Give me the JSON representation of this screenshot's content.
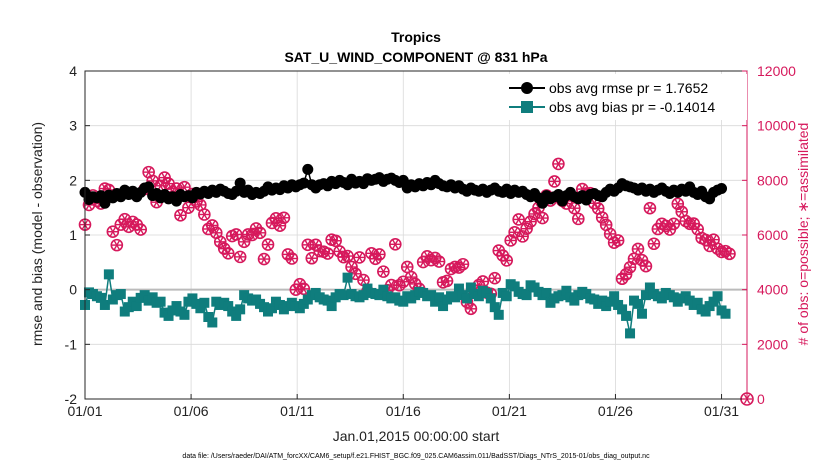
{
  "chart_data": {
    "type": "line",
    "title": "Tropics",
    "subtitle": "SAT_U_WIND_COMPONENT @ 831 hPa",
    "xlabel": "Jan.01,2015 00:00:00 start",
    "ylabel": "rmse and bias (model - observation)",
    "y2label": "# of obs: o=possible; ∗=assimilated",
    "footnote": "data file: /Users/raeder/DAI/ATM_forcXX/CAM6_setup/f.e21.FHIST_BGC.f09_025.CAM6assim.011/BadSST/Diags_NTrS_2015-01/obs_diag_output.nc",
    "xlim": [
      1,
      32.2
    ],
    "ylim": [
      -2,
      4
    ],
    "y2lim": [
      0,
      12000
    ],
    "xticks": [
      1,
      6,
      11,
      16,
      21,
      26,
      31
    ],
    "xtick_labels": [
      "01/01",
      "01/06",
      "01/11",
      "01/16",
      "01/21",
      "01/26",
      "01/31"
    ],
    "yticks": [
      -2,
      -1,
      0,
      1,
      2,
      3,
      4
    ],
    "ytick_labels": [
      "-2",
      "-1",
      "0",
      "1",
      "2",
      "3",
      "4"
    ],
    "y2ticks": [
      0,
      2000,
      4000,
      6000,
      8000,
      10000,
      12000
    ],
    "y2tick_labels": [
      "0",
      "2000",
      "4000",
      "6000",
      "8000",
      "10000",
      "12000"
    ],
    "colors": {
      "rmse": "#000000",
      "bias": "#0f7d7d",
      "obs": "#d6195c",
      "zero_line": "#bbbbbb"
    },
    "series": [
      {
        "name": "obs avg rmse pr = 1.7652",
        "key": "rmse",
        "values": [
          1.78,
          1.65,
          1.7,
          1.68,
          1.72,
          1.58,
          1.73,
          1.68,
          1.76,
          1.7,
          1.82,
          1.74,
          1.8,
          1.7,
          1.78,
          1.86,
          1.88,
          1.72,
          1.76,
          1.68,
          1.74,
          1.66,
          1.7,
          1.62,
          1.74,
          1.7,
          1.72,
          1.68,
          1.78,
          1.75,
          1.8,
          1.76,
          1.82,
          1.78,
          1.84,
          1.8,
          1.76,
          1.74,
          1.8,
          1.95,
          1.78,
          1.82,
          1.74,
          1.78,
          1.76,
          1.8,
          1.88,
          1.82,
          1.86,
          1.83,
          1.9,
          1.86,
          1.92,
          1.88,
          1.92,
          1.95,
          2.2,
          1.92,
          1.86,
          1.92,
          1.94,
          1.9,
          1.98,
          1.94,
          2.0,
          1.96,
          1.92,
          2.02,
          1.95,
          1.98,
          1.94,
          2.03,
          2.0,
          2.02,
          2.05,
          1.98,
          2.02,
          2.04,
          2.0,
          1.96,
          2.0,
          1.86,
          1.92,
          1.88,
          1.94,
          1.9,
          1.96,
          1.92,
          2.0,
          1.94,
          1.9,
          1.88,
          1.92,
          1.86,
          1.9,
          1.84,
          1.8,
          1.86,
          1.82,
          1.8,
          1.84,
          1.78,
          1.82,
          1.86,
          1.8,
          1.78,
          1.84,
          1.76,
          1.82,
          1.78,
          1.8,
          1.74,
          1.7,
          1.76,
          1.68,
          1.58,
          1.72,
          1.66,
          1.7,
          1.74,
          1.62,
          1.72,
          1.78,
          1.7,
          1.66,
          1.72,
          1.64,
          1.74,
          1.76,
          1.72,
          1.7,
          1.78,
          1.84,
          1.8,
          1.86,
          1.94,
          1.9,
          1.88,
          1.86,
          1.82,
          1.86,
          1.8,
          1.84,
          1.78,
          1.82,
          1.86,
          1.8,
          1.76,
          1.82,
          1.78,
          1.84,
          1.8,
          1.88,
          1.78,
          1.74,
          1.8,
          1.7,
          1.66,
          1.78,
          1.82,
          1.85
        ]
      },
      {
        "name": "obs avg bias pr = -0.14014",
        "key": "bias",
        "values": [
          -0.28,
          -0.05,
          -0.08,
          -0.12,
          -0.15,
          -0.28,
          0.28,
          -0.18,
          -0.1,
          -0.08,
          -0.4,
          -0.32,
          -0.22,
          -0.3,
          -0.15,
          -0.1,
          -0.2,
          -0.14,
          -0.24,
          -0.22,
          -0.42,
          -0.48,
          -0.38,
          -0.3,
          -0.4,
          -0.46,
          -0.22,
          -0.16,
          -0.26,
          -0.34,
          -0.24,
          -0.5,
          -0.6,
          -0.22,
          -0.28,
          -0.24,
          -0.3,
          -0.4,
          -0.48,
          -0.36,
          -0.1,
          -0.16,
          -0.2,
          -0.18,
          -0.26,
          -0.32,
          -0.4,
          -0.34,
          -0.22,
          -0.28,
          -0.36,
          -0.3,
          -0.24,
          -0.3,
          -0.34,
          -0.26,
          -0.18,
          -0.1,
          -0.06,
          -0.14,
          -0.18,
          -0.2,
          -0.3,
          -0.14,
          -0.08,
          -0.1,
          0.22,
          -0.08,
          -0.12,
          -0.14,
          -0.1,
          0.02,
          -0.06,
          -0.08,
          -0.1,
          0.0,
          -0.12,
          -0.16,
          -0.14,
          -0.2,
          -0.22,
          -0.12,
          -0.16,
          -0.1,
          -0.04,
          -0.06,
          -0.12,
          -0.1,
          -0.22,
          -0.14,
          -0.3,
          -0.18,
          -0.12,
          -0.14,
          0.02,
          -0.1,
          -0.16,
          0.04,
          -0.08,
          -0.12,
          -0.02,
          -0.06,
          -0.16,
          -0.32,
          -0.46,
          -0.06,
          -0.12,
          0.1,
          0.06,
          -0.04,
          -0.08,
          -0.1,
          0.08,
          0.04,
          -0.04,
          -0.1,
          -0.06,
          -0.24,
          -0.16,
          -0.12,
          -0.1,
          -0.02,
          -0.14,
          -0.2,
          -0.1,
          -0.04,
          -0.08,
          -0.16,
          -0.18,
          -0.26,
          -0.2,
          -0.3,
          -0.22,
          -0.12,
          -0.28,
          -0.36,
          -0.48,
          -0.8,
          -0.2,
          -0.26,
          -0.44,
          -0.1,
          0.04,
          -0.08,
          -0.12,
          -0.16,
          -0.06,
          -0.1,
          -0.14,
          -0.22,
          -0.16,
          -0.12,
          -0.2,
          -0.28,
          -0.24,
          -0.36,
          -0.4,
          -0.3,
          -0.22,
          -0.12,
          -0.38,
          -0.44
        ]
      },
      {
        "name": "obs possible",
        "key": "obs_possible",
        "values": [
          6380,
          7100,
          7450,
          7250,
          7150,
          7700,
          7650,
          6120,
          5630,
          6380,
          6580,
          6300,
          6480,
          6380,
          6200,
          7680,
          8300,
          7980,
          7200,
          7800,
          8100,
          7880,
          7580,
          7700,
          6720,
          7750,
          7000,
          7500,
          7230,
          7100,
          6750,
          6220,
          6350,
          6080,
          5750,
          5500,
          5330,
          5960,
          6020,
          5200,
          5750,
          6020,
          6000,
          6240,
          6080,
          5120,
          5650,
          6440,
          6610,
          6340,
          6630,
          5290,
          5140,
          4000,
          4200,
          4030,
          5640,
          5150,
          5640,
          5410,
          5390,
          5320,
          5830,
          5790,
          5400,
          5190,
          5230,
          4830,
          4580,
          5180,
          4350,
          3950,
          5330,
          5130,
          5290,
          4660,
          3980,
          4170,
          5660,
          4160,
          4290,
          4830,
          4460,
          4210,
          4030,
          5010,
          5220,
          5080,
          5160,
          5030,
          4270,
          4320,
          4760,
          4830,
          4810,
          4930,
          3550,
          3300,
          3960,
          4170,
          4300,
          3890,
          3850,
          4420,
          5430,
          5250,
          5070,
          5800,
          6100,
          6570,
          5950,
          6230,
          6490,
          6770,
          7000,
          6620,
          7450,
          7260,
          7960,
          8600,
          7250,
          7150,
          7450,
          6980,
          6590,
          7680,
          7520,
          7530,
          7160,
          6970,
          6640,
          6370,
          6040,
          5720,
          5800,
          4400,
          4560,
          4820,
          5130,
          5490,
          5080,
          4860,
          6980,
          5680,
          6220,
          6410,
          6330,
          6200,
          6410,
          7140,
          6850,
          6510,
          6410,
          6420,
          6210,
          5890,
          5820,
          5600,
          5830,
          5500,
          5380,
          5410,
          5310
        ]
      },
      {
        "name": "obs assimilated",
        "key": "obs_assimilated",
        "values": [
          6380,
          7100,
          7450,
          7250,
          7150,
          7700,
          7650,
          6120,
          5630,
          6380,
          6580,
          6300,
          6480,
          6380,
          6200,
          7680,
          8300,
          7980,
          7200,
          7800,
          8100,
          7880,
          7580,
          7700,
          6720,
          7750,
          7000,
          7500,
          7230,
          7100,
          6750,
          6220,
          6350,
          6080,
          5750,
          5500,
          5330,
          5960,
          6020,
          5200,
          5750,
          6020,
          6000,
          6240,
          6080,
          5120,
          5650,
          6440,
          6610,
          6340,
          6630,
          5290,
          5140,
          4000,
          4200,
          4030,
          5640,
          5150,
          5640,
          5410,
          5390,
          5320,
          5830,
          5790,
          5400,
          5190,
          5230,
          4830,
          4580,
          5180,
          4350,
          3950,
          5330,
          5130,
          5290,
          4660,
          3980,
          4170,
          5660,
          4160,
          4290,
          4830,
          4460,
          4210,
          4030,
          5010,
          5220,
          5080,
          5160,
          5030,
          4270,
          4320,
          4760,
          4830,
          4810,
          4930,
          3550,
          3300,
          3960,
          4170,
          4300,
          3890,
          3850,
          4420,
          5430,
          5250,
          5070,
          5800,
          6100,
          6570,
          5950,
          6230,
          6490,
          6770,
          7000,
          6620,
          7450,
          7260,
          7960,
          8600,
          7250,
          7150,
          7450,
          6980,
          6590,
          7680,
          7520,
          7530,
          7160,
          6970,
          6640,
          6370,
          6040,
          5720,
          5800,
          4400,
          4560,
          4820,
          5130,
          5490,
          5080,
          4860,
          6980,
          5680,
          6220,
          6410,
          6330,
          6200,
          6410,
          7140,
          6850,
          6510,
          6410,
          6420,
          6210,
          5890,
          5820,
          5600,
          5830,
          5500,
          5380,
          5410,
          5310
        ]
      }
    ],
    "extra_point": {
      "x": 32.2,
      "y2": 0,
      "label": "obs possible at final edge"
    },
    "legend": {
      "position": "top-right",
      "entries": [
        "obs avg rmse pr = 1.7652",
        "obs avg bias pr = -0.14014"
      ]
    }
  }
}
